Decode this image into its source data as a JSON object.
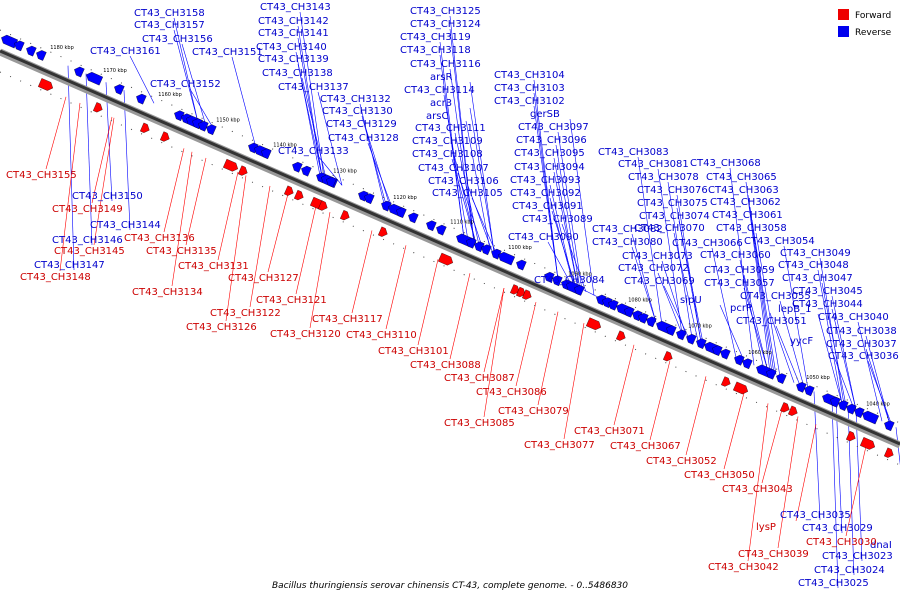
{
  "caption": "Bacillus thuringiensis serovar chinensis CT-43, complete genome. - 0..5486830",
  "colors": {
    "forward": "#ff0000",
    "reverse": "#0000ff",
    "backbone": "#333333",
    "forward_text": "#cc0000",
    "reverse_text": "#0000cc"
  },
  "legend": [
    {
      "label": "Forward",
      "color": "#ee0000"
    },
    {
      "label": "Reverse",
      "color": "#0000ee"
    }
  ],
  "kbp_ticks": [
    "1180 kbp",
    "1170 kbp",
    "1160 kbp",
    "1150 kbp",
    "1140 kbp",
    "1130 kbp",
    "1120 kbp",
    "1110 kbp",
    "1100 kbp",
    "1090 kbp",
    "1080 kbp",
    "1070 kbp",
    "1060 kbp",
    "1050 kbp",
    "1040 kbp"
  ],
  "reverse_genes": [
    "CT43_CH3158",
    "CT43_CH3157",
    "CT43_CH3156",
    "CT43_CH3161",
    "CT43_CH3152",
    "CT43_CH3151",
    "CT43_CH3143",
    "CT43_CH3142",
    "CT43_CH3141",
    "CT43_CH3140",
    "CT43_CH3139",
    "CT43_CH3138",
    "CT43_CH3137",
    "CT43_CH3132",
    "CT43_CH3130",
    "CT43_CH3129",
    "CT43_CH3128",
    "CT43_CH3133",
    "CT43_CH3125",
    "CT43_CH3124",
    "CT43_CH3119",
    "CT43_CH3118",
    "CT43_CH3116",
    "arsR",
    "CT43_CH3114",
    "acr3",
    "arsC",
    "CT43_CH3111",
    "CT43_CH3109",
    "CT43_CH3108",
    "CT43_CH3107",
    "CT43_CH3106",
    "CT43_CH3105",
    "CT43_CH3104",
    "CT43_CH3103",
    "CT43_CH3102",
    "gerSB",
    "CT43_CH3097",
    "CT43_CH3096",
    "CT43_CH3095",
    "CT43_CH3094",
    "CT43_CH3093",
    "CT43_CH3092",
    "CT43_CH3091",
    "CT43_CH3089",
    "CT43_CH3090",
    "CT43_CH3084",
    "CT43_CH3083",
    "CT43_CH3081",
    "CT43_CH3078",
    "CT43_CH3076",
    "CT43_CH3075",
    "CT43_CH3074",
    "CT43_CH3070",
    "CT43_CH3082",
    "CT43_CH3080",
    "CT43_CH3073",
    "CT43_CH3072",
    "CT43_CH3069",
    "sipU",
    "CT43_CH3068",
    "CT43_CH3065",
    "CT43_CH3063",
    "CT43_CH3062",
    "CT43_CH3061",
    "CT43_CH3058",
    "CT43_CH3066",
    "CT43_CH3060",
    "CT43_CH3059",
    "CT43_CH3057",
    "CT43_CH3055",
    "pcrP",
    "lepB_1",
    "CT43_CH3051",
    "CT43_CH3054",
    "CT43_CH3049",
    "CT43_CH3048",
    "CT43_CH3047",
    "CT43_CH3045",
    "CT43_CH3044",
    "CT43_CH3040",
    "CT43_CH3038",
    "yycF",
    "CT43_CH3037",
    "CT43_CH3036",
    "CT43_CH3150",
    "CT43_CH3144",
    "CT43_CH3146",
    "CT43_CH3147",
    "CT43_CH3035",
    "CT43_CH3029",
    "dnaI",
    "CT43_CH3023",
    "CT43_CH3024",
    "CT43_CH3025"
  ],
  "forward_genes": [
    "CT43_CH3155",
    "CT43_CH3149",
    "CT43_CH3136",
    "CT43_CH3145",
    "CT43_CH3135",
    "CT43_CH3148",
    "CT43_CH3131",
    "CT43_CH3134",
    "CT43_CH3127",
    "CT43_CH3121",
    "CT43_CH3122",
    "CT43_CH3126",
    "CT43_CH3120",
    "CT43_CH3117",
    "CT43_CH3110",
    "CT43_CH3101",
    "CT43_CH3088",
    "CT43_CH3087",
    "CT43_CH3086",
    "CT43_CH3085",
    "CT43_CH3079",
    "CT43_CH3077",
    "CT43_CH3071",
    "CT43_CH3067",
    "CT43_CH3052",
    "CT43_CH3050",
    "CT43_CH3043",
    "lysP",
    "CT43_CH3039",
    "CT43_CH3042",
    "CT43_CH3030"
  ]
}
